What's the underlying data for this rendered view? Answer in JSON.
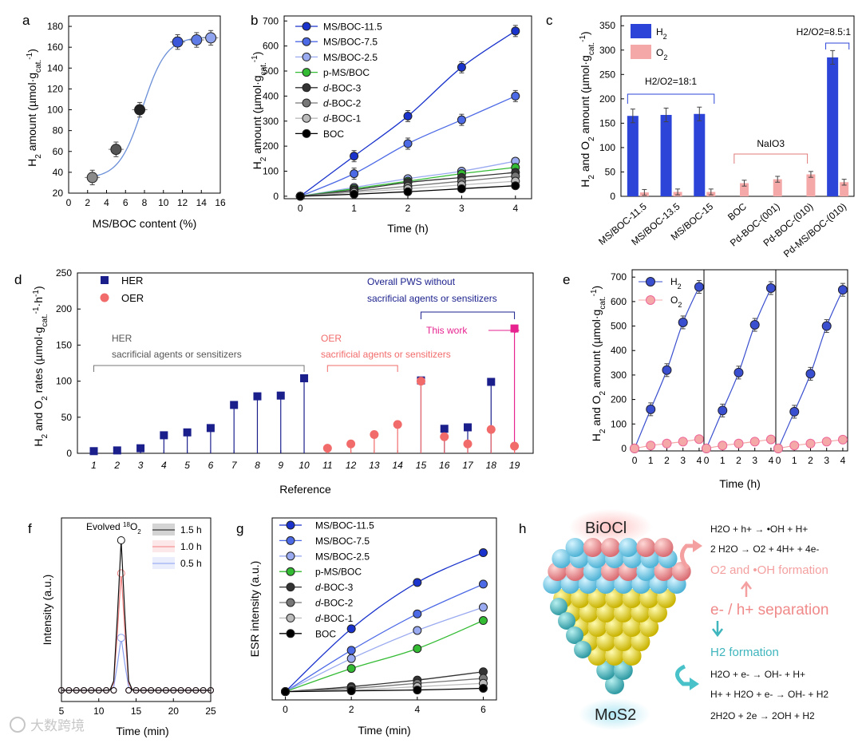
{
  "watermark": "大数跨境",
  "panel_letters": [
    "a",
    "b",
    "c",
    "d",
    "e",
    "f",
    "g",
    "h"
  ],
  "chart_data": [
    {
      "panel": "a",
      "type": "scatter",
      "xlabel": "MS/BOC content (%)",
      "ylabel": "H2 amount (µmol·gcat.-1)",
      "xlim": [
        0,
        16
      ],
      "ylim": [
        20,
        190
      ],
      "xticks": [
        0,
        2,
        4,
        6,
        8,
        10,
        12,
        14,
        16
      ],
      "yticks": [
        20,
        40,
        60,
        80,
        100,
        120,
        140,
        160,
        180
      ],
      "series": [
        {
          "x": [
            2.5,
            5,
            7.5,
            11.5,
            13.5,
            15
          ],
          "y": [
            35,
            62,
            100,
            165,
            167,
            169
          ],
          "xerr": 0.8,
          "yerr": 7,
          "colors": [
            "#8a8a8a",
            "#555555",
            "#222222",
            "#3b57d9",
            "#5f7be6",
            "#8fa3ef"
          ]
        }
      ]
    },
    {
      "panel": "b",
      "type": "line",
      "xlabel": "Time (h)",
      "ylabel": "H2 amount (µmol·gcat.-1)",
      "xlim": [
        -0.3,
        4.3
      ],
      "ylim": [
        -10,
        720
      ],
      "xticks": [
        0,
        1,
        2,
        3,
        4
      ],
      "yticks": [
        0,
        100,
        200,
        300,
        400,
        500,
        600,
        700
      ],
      "x": [
        0,
        1,
        2,
        3,
        4
      ],
      "legend_position": "upper-left",
      "series": [
        {
          "name": "MS/BOC-11.5",
          "values": [
            0,
            160,
            320,
            515,
            660
          ],
          "color": "#1a33cc"
        },
        {
          "name": "MS/BOC-7.5",
          "values": [
            0,
            90,
            210,
            305,
            400
          ],
          "color": "#4d6ae6"
        },
        {
          "name": "MS/BOC-2.5",
          "values": [
            0,
            35,
            70,
            100,
            140
          ],
          "color": "#9aaaf0"
        },
        {
          "name": "p-MS/BOC",
          "values": [
            0,
            30,
            60,
            90,
            115
          ],
          "color": "#33bb33"
        },
        {
          "name": "d-BOC-3",
          "values": [
            0,
            25,
            55,
            75,
            95
          ],
          "color": "#333333"
        },
        {
          "name": "d-BOC-2",
          "values": [
            0,
            20,
            40,
            60,
            80
          ],
          "color": "#777777"
        },
        {
          "name": "d-BOC-1",
          "values": [
            0,
            15,
            30,
            45,
            60
          ],
          "color": "#bbbbbb"
        },
        {
          "name": "BOC",
          "values": [
            0,
            8,
            18,
            30,
            42
          ],
          "color": "#000000"
        }
      ]
    },
    {
      "panel": "c",
      "type": "bar",
      "ylabel": "H2 and O2 amount (µmol·gcat.-1)",
      "ylim": [
        0,
        370
      ],
      "yticks": [
        0,
        50,
        100,
        150,
        200,
        250,
        300,
        350
      ],
      "categories": [
        "MS/BOC-11.5",
        "MS/BOC-13.5",
        "MS/BOC-15",
        "BOC",
        "Pd-BOC-(001)",
        "Pd-BOC-(010)",
        "Pd-MS/BOC-(010)"
      ],
      "series": [
        {
          "name": "H2",
          "values": [
            165,
            167,
            169,
            0,
            0,
            0,
            285
          ],
          "color": "#2c45d8"
        },
        {
          "name": "O2",
          "values": [
            8,
            9,
            9,
            27,
            35,
            45,
            29
          ],
          "color": "#f4a8a8"
        }
      ],
      "annotations": [
        "H2/O2=18:1",
        "NaIO3",
        "H2/O2=8.5:1"
      ]
    },
    {
      "panel": "d",
      "type": "bar",
      "xlabel": "Reference",
      "ylabel": "H2 and O2 rates (µmol·gcat.-1·h-1)",
      "ylim": [
        0,
        250
      ],
      "yticks": [
        0,
        50,
        100,
        150,
        200,
        250
      ],
      "categories": [
        "1",
        "2",
        "3",
        "4",
        "5",
        "6",
        "7",
        "8",
        "9",
        "10",
        "11",
        "12",
        "13",
        "14",
        "15",
        "16",
        "17",
        "18",
        "19"
      ],
      "series": [
        {
          "name": "HER",
          "values": [
            3,
            4,
            7,
            25,
            29,
            35,
            67,
            79,
            80,
            104,
            null,
            null,
            null,
            null,
            101,
            34,
            36,
            99,
            173
          ],
          "color": "#1a1f8c"
        },
        {
          "name": "OER",
          "values": [
            null,
            null,
            null,
            null,
            null,
            null,
            null,
            null,
            null,
            null,
            7,
            13,
            26,
            40,
            100,
            23,
            13,
            33,
            10
          ],
          "color": "#f26b6b"
        }
      ],
      "annotations": [
        "HER",
        "sacrificial agents or sensitizers",
        "OER",
        "sacrificial agents or sensitizers",
        "Overall PWS without",
        "sacrificial agents or sensitizers",
        "This work"
      ]
    },
    {
      "panel": "e",
      "type": "line",
      "xlabel": "Time (h)",
      "ylabel": "H2 and O2 amount (µmol·gcat.-1)",
      "ylim": [
        -10,
        730
      ],
      "yticks": [
        0,
        100,
        200,
        300,
        400,
        500,
        600,
        700
      ],
      "xticks": [
        0,
        1,
        2,
        3,
        4
      ],
      "cycles": 3,
      "series": [
        {
          "name": "H2",
          "cycles": [
            [
              0,
              160,
              320,
              515,
              660
            ],
            [
              0,
              155,
              310,
              505,
              655
            ],
            [
              0,
              150,
              305,
              500,
              648
            ]
          ],
          "color": "#3a4fcf"
        },
        {
          "name": "O2",
          "cycles": [
            [
              0,
              12,
              20,
              28,
              38
            ],
            [
              0,
              12,
              20,
              28,
              37
            ],
            [
              0,
              12,
              20,
              28,
              36
            ]
          ],
          "color": "#f4a8a8"
        }
      ]
    },
    {
      "panel": "f",
      "type": "line",
      "xlabel": "Time (min)",
      "ylabel": "Intensity (a.u.)",
      "xlim": [
        5,
        25
      ],
      "xticks": [
        5,
        10,
        15,
        20,
        25
      ],
      "annotation": "Evolved 18O2",
      "legend_position": "top-right",
      "series": [
        {
          "name": "1.5 h",
          "peak": 1.0,
          "color": "#111111"
        },
        {
          "name": "1.0 h",
          "peak": 0.78,
          "color": "#f08080"
        },
        {
          "name": "0.5 h",
          "peak": 0.35,
          "color": "#8a9ff0"
        }
      ]
    },
    {
      "panel": "g",
      "type": "line",
      "xlabel": "Time (min)",
      "ylabel": "ESR intensity (a.u.)",
      "xticks": [
        0,
        2,
        4,
        6
      ],
      "xlim": [
        -0.4,
        6.4
      ],
      "ylim": [
        -0.05,
        1.05
      ],
      "x": [
        0,
        2,
        4,
        6
      ],
      "legend_position": "upper-left",
      "series": [
        {
          "name": "MS/BOC-11.5",
          "values": [
            0,
            0.38,
            0.66,
            0.84
          ],
          "color": "#1a33cc"
        },
        {
          "name": "MS/BOC-7.5",
          "values": [
            0,
            0.25,
            0.47,
            0.65
          ],
          "color": "#4d6ae6"
        },
        {
          "name": "MS/BOC-2.5",
          "values": [
            0,
            0.2,
            0.37,
            0.51
          ],
          "color": "#9aaaf0"
        },
        {
          "name": "p-MS/BOC",
          "values": [
            0,
            0.14,
            0.26,
            0.43
          ],
          "color": "#33bb33"
        },
        {
          "name": "d-BOC-3",
          "values": [
            0,
            0.03,
            0.07,
            0.12
          ],
          "color": "#333333"
        },
        {
          "name": "d-BOC-2",
          "values": [
            0,
            0.02,
            0.05,
            0.08
          ],
          "color": "#777777"
        },
        {
          "name": "d-BOC-1",
          "values": [
            0,
            0.01,
            0.03,
            0.05
          ],
          "color": "#bbbbbb"
        },
        {
          "name": "BOC",
          "values": [
            0,
            0.005,
            0.01,
            0.02
          ],
          "color": "#000000"
        }
      ]
    }
  ],
  "schematic_h": {
    "top_label": "BiOCl",
    "bottom_label": "MoS2",
    "equations": [
      "H2O + h+ → •OH + H+",
      "2 H2O → O2 + 4H+ + 4e-",
      "O2 and •OH formation",
      "e- / h+ separation",
      "H2 formation",
      "H2O + e- → OH- + H+",
      "H+ + H2O + e- → OH- + H2",
      "2H2O + 2e → 2OH + H2"
    ]
  }
}
